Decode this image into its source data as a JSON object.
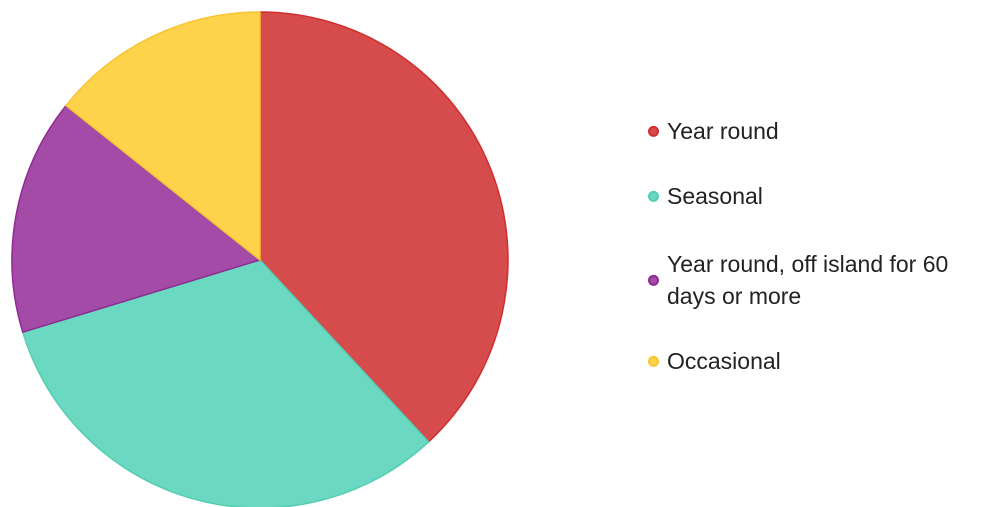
{
  "chart_data": {
    "type": "pie",
    "categories": [
      "Year round",
      "Seasonal",
      "Year round, off island for 60 days or more",
      "Occasional"
    ],
    "values": [
      38.1,
      32.2,
      15.4,
      14.3
    ],
    "colors": [
      "#d64c4c",
      "#6bd9c1",
      "#a34ba6",
      "#fed34c"
    ],
    "stroke_colors": [
      "#cf2f2f",
      "#54cdb2",
      "#8e2c91",
      "#f7c531"
    ],
    "legend": "right"
  }
}
